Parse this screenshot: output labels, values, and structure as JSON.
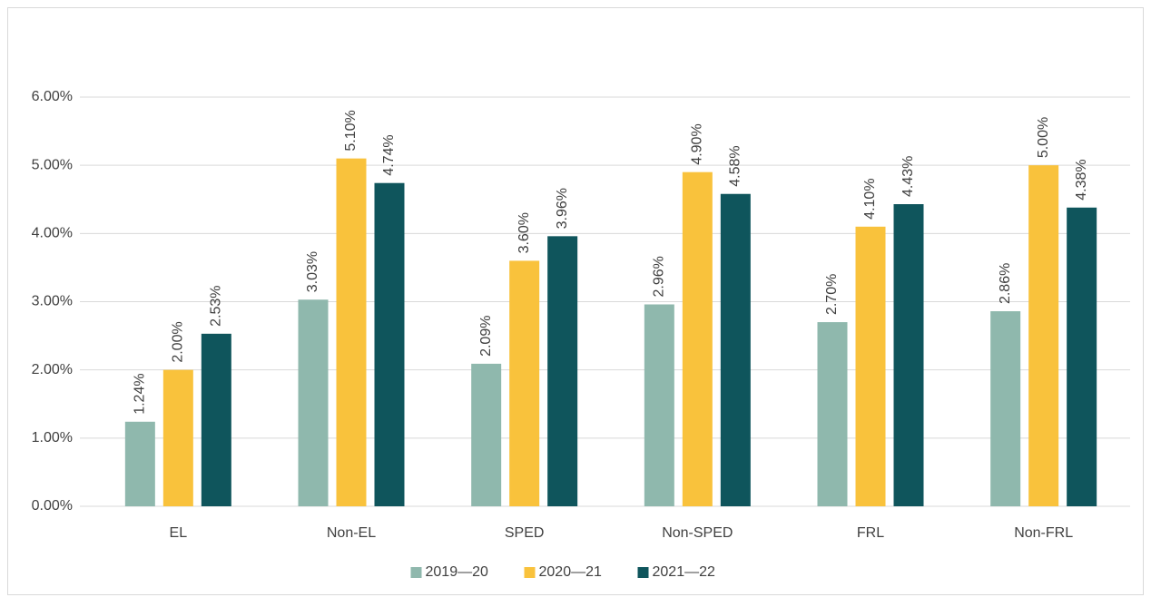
{
  "chart_data": {
    "type": "bar",
    "categories": [
      "EL",
      "Non-EL",
      "SPED",
      "Non-SPED",
      "FRL",
      "Non-FRL"
    ],
    "series": [
      {
        "name": "2019—20",
        "color": "#8fb8ad",
        "values": [
          1.24,
          3.03,
          2.09,
          2.96,
          2.7,
          2.86
        ],
        "value_labels": [
          "1.24%",
          "3.03%",
          "2.09%",
          "2.96%",
          "2.70%",
          "2.86%"
        ]
      },
      {
        "name": "2020—21",
        "color": "#f9c23c",
        "values": [
          2.0,
          5.1,
          3.6,
          4.9,
          4.1,
          5.0
        ],
        "value_labels": [
          "2.00%",
          "5.10%",
          "3.60%",
          "4.90%",
          "4.10%",
          "5.00%"
        ]
      },
      {
        "name": "2021—22",
        "color": "#0f555c",
        "values": [
          2.53,
          4.74,
          3.96,
          4.58,
          4.43,
          4.38
        ],
        "value_labels": [
          "2.53%",
          "4.74%",
          "3.96%",
          "4.58%",
          "4.43%",
          "4.38%"
        ]
      }
    ],
    "ylim": [
      0,
      6
    ],
    "yticks": [
      {
        "value": 0,
        "label": "0.00%"
      },
      {
        "value": 1,
        "label": "1.00%"
      },
      {
        "value": 2,
        "label": "2.00%"
      },
      {
        "value": 3,
        "label": "3.00%"
      },
      {
        "value": 4,
        "label": "4.00%"
      },
      {
        "value": 5,
        "label": "5.00%"
      },
      {
        "value": 6,
        "label": "6.00%"
      }
    ],
    "grid": true,
    "legend": "bottom"
  }
}
